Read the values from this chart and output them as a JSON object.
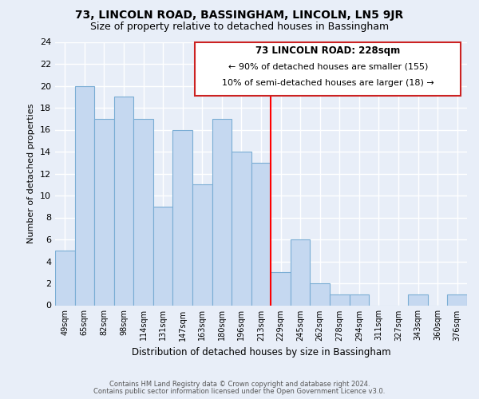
{
  "title": "73, LINCOLN ROAD, BASSINGHAM, LINCOLN, LN5 9JR",
  "subtitle": "Size of property relative to detached houses in Bassingham",
  "xlabel": "Distribution of detached houses by size in Bassingham",
  "ylabel": "Number of detached properties",
  "bar_labels": [
    "49sqm",
    "65sqm",
    "82sqm",
    "98sqm",
    "114sqm",
    "131sqm",
    "147sqm",
    "163sqm",
    "180sqm",
    "196sqm",
    "213sqm",
    "229sqm",
    "245sqm",
    "262sqm",
    "278sqm",
    "294sqm",
    "311sqm",
    "327sqm",
    "343sqm",
    "360sqm",
    "376sqm"
  ],
  "bar_values": [
    5,
    20,
    17,
    19,
    17,
    9,
    16,
    11,
    17,
    14,
    13,
    3,
    6,
    2,
    1,
    1,
    0,
    0,
    1,
    0,
    1
  ],
  "bar_color": "#c5d8f0",
  "bar_edge_color": "#7aadd4",
  "ylim": [
    0,
    24
  ],
  "yticks": [
    0,
    2,
    4,
    6,
    8,
    10,
    12,
    14,
    16,
    18,
    20,
    22,
    24
  ],
  "annotation_title": "73 LINCOLN ROAD: 228sqm",
  "annotation_line1": "← 90% of detached houses are smaller (155)",
  "annotation_line2": "10% of semi-detached houses are larger (18) →",
  "footer_line1": "Contains HM Land Registry data © Crown copyright and database right 2024.",
  "footer_line2": "Contains public sector information licensed under the Open Government Licence v3.0.",
  "bg_color": "#e8eef8",
  "grid_color": "#c8d4e8",
  "ref_line_index": 11
}
